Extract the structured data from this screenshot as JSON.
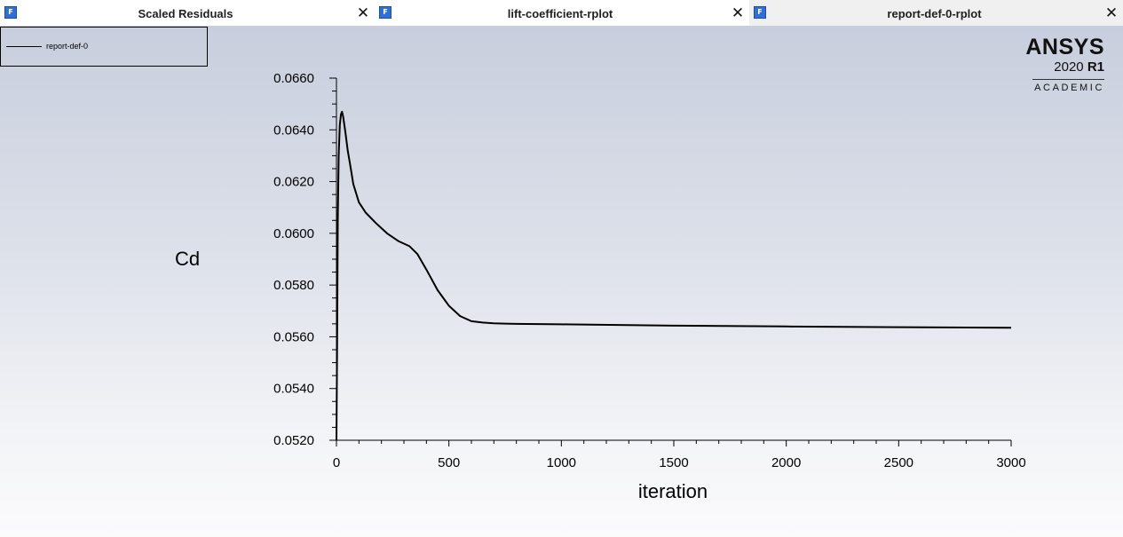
{
  "tabs": [
    {
      "icon": "fluent-icon",
      "icon_text": "F",
      "label": "Scaled Residuals",
      "close": "✕"
    },
    {
      "icon": "fluent-icon",
      "icon_text": "F",
      "label": "lift-coefficient-rplot",
      "close": "✕"
    },
    {
      "icon": "fluent-icon",
      "icon_text": "F",
      "label": "report-def-0-rplot",
      "close": "✕",
      "active": true
    }
  ],
  "legend": {
    "entry": "report-def-0"
  },
  "logo": {
    "brand": "ANSYS",
    "version_year": "2020",
    "version_release": "R1",
    "edition": "ACADEMIC"
  },
  "chart_data": {
    "type": "line",
    "xlabel": "iteration",
    "ylabel": "Cd",
    "xlim": [
      0,
      3000
    ],
    "ylim": [
      0.052,
      0.066
    ],
    "x_ticks": [
      0,
      500,
      1000,
      1500,
      2000,
      2500,
      3000
    ],
    "x_tick_labels": [
      "0",
      "500",
      "1000",
      "1500",
      "2000",
      "2500",
      "3000"
    ],
    "y_ticks": [
      0.052,
      0.054,
      0.056,
      0.058,
      0.06,
      0.062,
      0.064,
      0.066
    ],
    "y_tick_labels": [
      "0.0520",
      "0.0540",
      "0.0560",
      "0.0580",
      "0.0600",
      "0.0620",
      "0.0640",
      "0.0660"
    ],
    "grid": false,
    "legend_position": "top-left",
    "series": [
      {
        "name": "report-def-0",
        "color": "#000000",
        "x": [
          0,
          3,
          6,
          10,
          15,
          20,
          25,
          30,
          40,
          50,
          60,
          75,
          100,
          130,
          175,
          225,
          275,
          325,
          360,
          400,
          450,
          500,
          550,
          600,
          650,
          700,
          750,
          800,
          1000,
          1500,
          2000,
          2500,
          3000
        ],
        "y": [
          0.0518,
          0.056,
          0.0605,
          0.063,
          0.0642,
          0.0646,
          0.0647,
          0.0645,
          0.0639,
          0.0632,
          0.0627,
          0.0619,
          0.0612,
          0.0608,
          0.0604,
          0.06,
          0.0597,
          0.0595,
          0.0592,
          0.0586,
          0.0578,
          0.0572,
          0.0568,
          0.0566,
          0.05655,
          0.05652,
          0.05651,
          0.0565,
          0.05648,
          0.05643,
          0.0564,
          0.05637,
          0.05635
        ]
      }
    ]
  }
}
